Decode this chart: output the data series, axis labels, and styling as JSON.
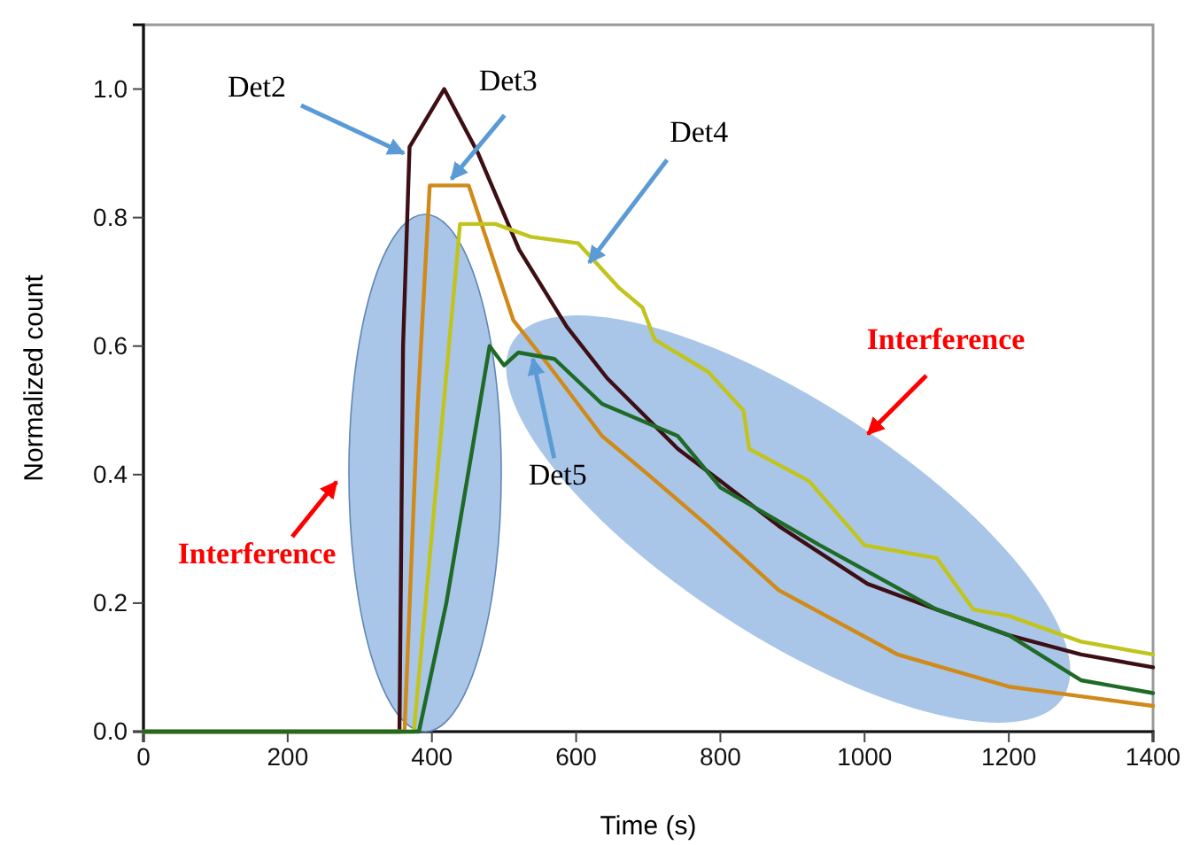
{
  "chart_data": {
    "type": "line",
    "xlabel": "Time (s)",
    "ylabel": "Normalized count",
    "xlim": [
      0,
      1400
    ],
    "xticks": [
      0,
      200,
      400,
      600,
      800,
      1000,
      1200,
      1400
    ],
    "ylim": [
      0,
      1.1
    ],
    "yticks": [
      {
        "value": 0,
        "label": "0.0"
      },
      {
        "value": 0.2,
        "label": "0.2"
      },
      {
        "value": 0.4,
        "label": "0.4"
      },
      {
        "value": 0.6,
        "label": "0.6"
      },
      {
        "value": 0.8,
        "label": "0.8"
      },
      {
        "value": 1,
        "label": "1.0"
      }
    ],
    "grid": false,
    "line_style": "solid",
    "marker": "none",
    "series": [
      {
        "color": "#3d0f14",
        "x": [
          0,
          355,
          360,
          369,
          417,
          464,
          521,
          587,
          643,
          741,
          800,
          881,
          1004,
          1100,
          1200,
          1300,
          1400
        ],
        "values": [
          0,
          0,
          0.6,
          0.91,
          1.0,
          0.9,
          0.75,
          0.63,
          0.55,
          0.44,
          0.39,
          0.32,
          0.23,
          0.19,
          0.15,
          0.12,
          0.1
        ]
      },
      {
        "color": "#d08a1a",
        "x": [
          0,
          362,
          380,
          397,
          451,
          513,
          562,
          636,
          700,
          783,
          881,
          1046,
          1200,
          1300,
          1400
        ],
        "values": [
          0,
          0,
          0.5,
          0.85,
          0.85,
          0.64,
          0.57,
          0.46,
          0.4,
          0.32,
          0.22,
          0.12,
          0.07,
          0.055,
          0.04
        ]
      },
      {
        "color": "#c2c41e",
        "x": [
          0,
          375,
          439,
          488,
          537,
          603,
          660,
          692,
          709,
          783,
          832,
          840,
          923,
          1000,
          1100,
          1151,
          1200,
          1300,
          1400
        ],
        "values": [
          0,
          0,
          0.79,
          0.79,
          0.77,
          0.76,
          0.69,
          0.66,
          0.61,
          0.56,
          0.5,
          0.44,
          0.39,
          0.29,
          0.27,
          0.19,
          0.18,
          0.14,
          0.12
        ]
      },
      {
        "color": "#1f6a26",
        "x": [
          0,
          382,
          420,
          480,
          500,
          520,
          570,
          636,
          741,
          800,
          938,
          1100,
          1200,
          1300,
          1400
        ],
        "values": [
          0,
          0,
          0.2,
          0.6,
          0.57,
          0.59,
          0.58,
          0.51,
          0.46,
          0.38,
          0.29,
          0.19,
          0.15,
          0.08,
          0.06
        ]
      }
    ],
    "annotations": [
      {
        "text": "Det2",
        "x": 361,
        "y": 0.9
      },
      {
        "text": "Det3",
        "x": 427,
        "y": 0.86
      },
      {
        "text": "Det4",
        "x": 618,
        "y": 0.73
      },
      {
        "text": "Det5",
        "x": 540,
        "y": 0.58
      },
      "Interference",
      "Interference"
    ]
  }
}
